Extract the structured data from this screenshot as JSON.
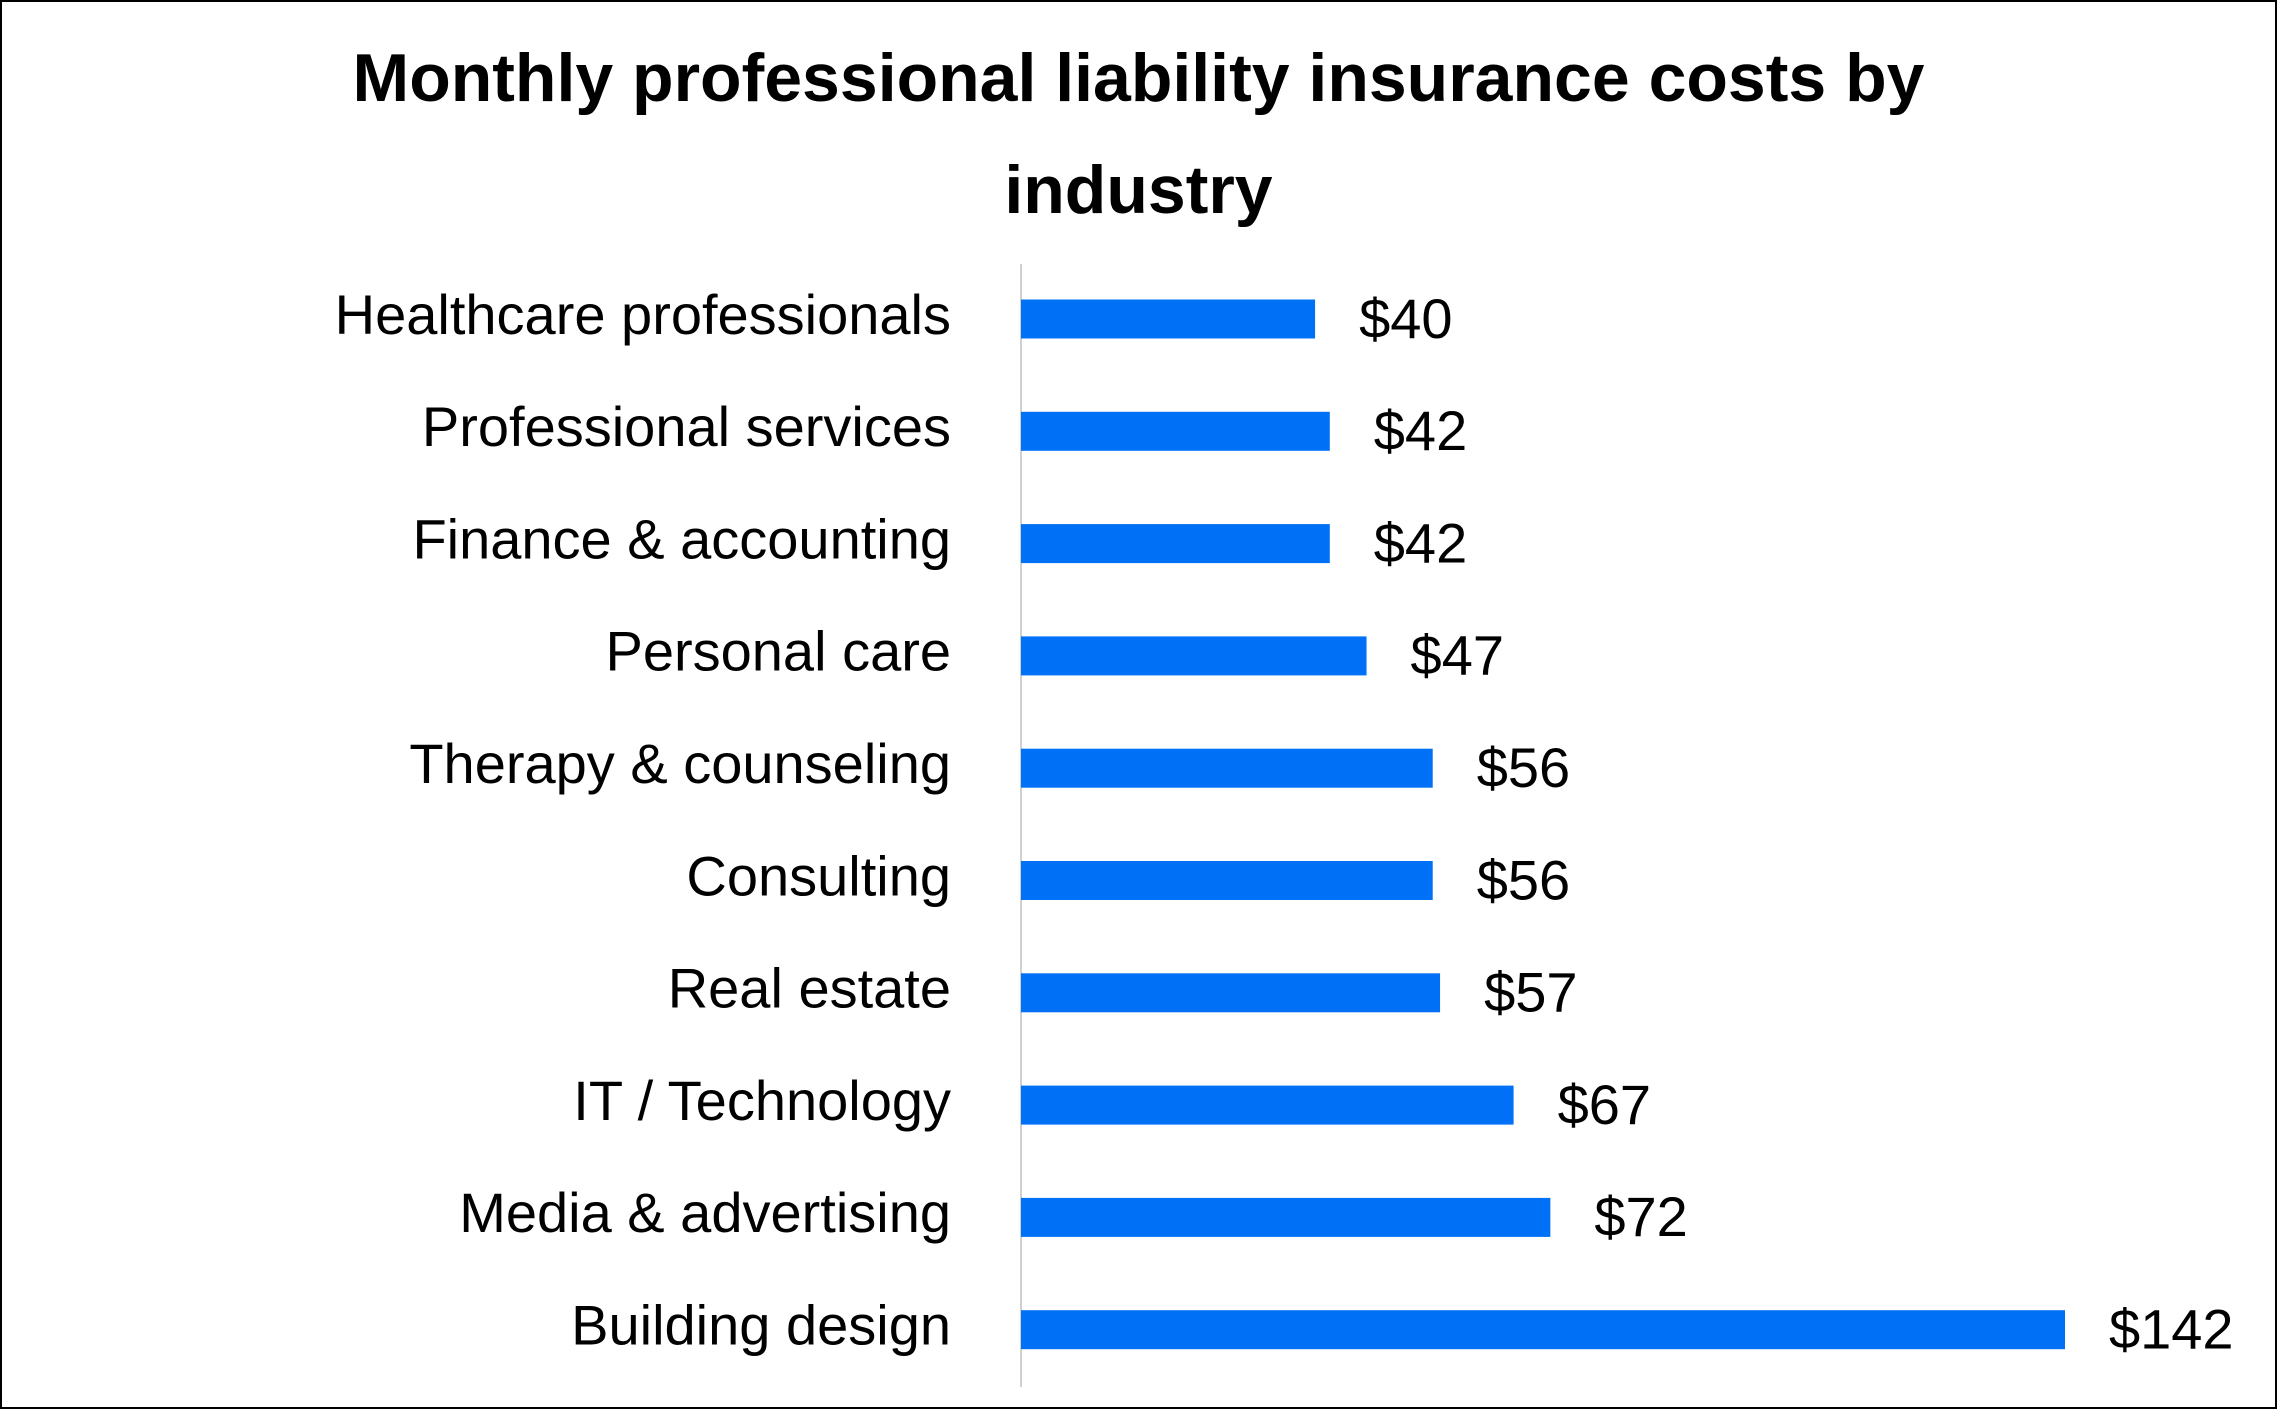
{
  "chart_data": {
    "type": "bar",
    "orientation": "horizontal",
    "title": "Monthly professional liability insurance costs by industry",
    "categories": [
      "Healthcare professionals",
      "Professional services",
      "Finance & accounting",
      "Personal care",
      "Therapy & counseling",
      "Consulting",
      "Real estate",
      "IT / Technology",
      "Media & advertising",
      "Building design"
    ],
    "values": [
      40,
      42,
      42,
      47,
      56,
      56,
      57,
      67,
      72,
      142
    ],
    "value_labels": [
      "$40",
      "$42",
      "$42",
      "$47",
      "$56",
      "$56",
      "$57",
      "$67",
      "$72",
      "$142"
    ],
    "color": "#0070f6"
  }
}
